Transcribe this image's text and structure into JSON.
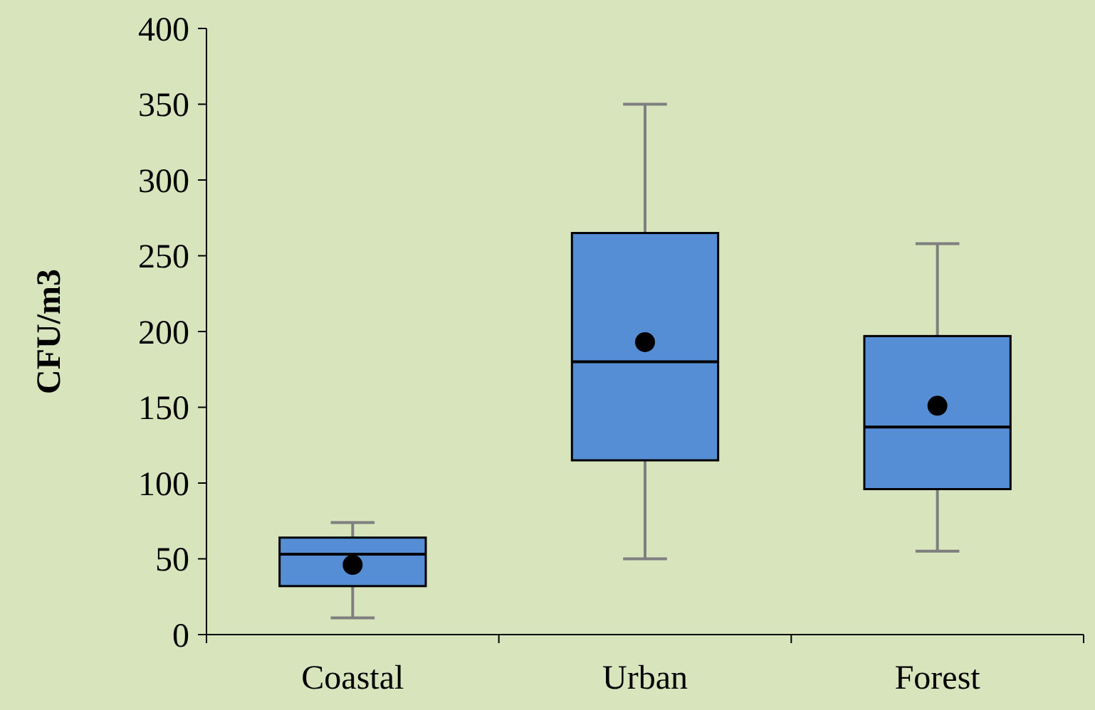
{
  "chart_data": {
    "type": "box",
    "ylabel": "CFU/m3",
    "categories": [
      "Coastal",
      "Urban",
      "Forest"
    ],
    "color": "#558ed5",
    "ylim": [
      0,
      400
    ],
    "yticks": [
      0,
      50,
      100,
      150,
      200,
      250,
      300,
      350,
      400
    ],
    "grid": false,
    "boxes": [
      {
        "low": 11,
        "q1": 32,
        "median": 53,
        "q3": 64,
        "high": 74,
        "mean": 46
      },
      {
        "low": 50,
        "q1": 115,
        "median": 180,
        "q3": 265,
        "high": 350,
        "mean": 193
      },
      {
        "low": 55,
        "q1": 96,
        "median": 137,
        "q3": 197,
        "high": 258,
        "mean": 151
      }
    ]
  }
}
